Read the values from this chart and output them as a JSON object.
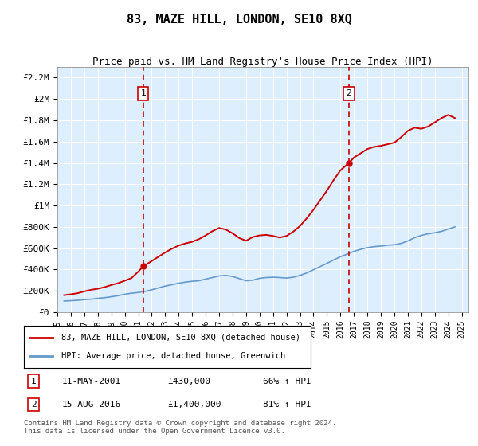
{
  "title": "83, MAZE HILL, LONDON, SE10 8XQ",
  "subtitle": "Price paid vs. HM Land Registry's House Price Index (HPI)",
  "footer": "Contains HM Land Registry data © Crown copyright and database right 2024.\nThis data is licensed under the Open Government Licence v3.0.",
  "legend_line1": "83, MAZE HILL, LONDON, SE10 8XQ (detached house)",
  "legend_line2": "HPI: Average price, detached house, Greenwich",
  "annotation1_label": "1",
  "annotation1_date": "11-MAY-2001",
  "annotation1_price": "£430,000",
  "annotation1_pct": "66% ↑ HPI",
  "annotation2_label": "2",
  "annotation2_date": "15-AUG-2016",
  "annotation2_price": "£1,400,000",
  "annotation2_pct": "81% ↑ HPI",
  "house_color": "#cc0000",
  "hpi_color": "#6699cc",
  "background_color": "#ddeeff",
  "plot_bg": "#ddeeff",
  "ylim": [
    0,
    2300000
  ],
  "yticks": [
    0,
    200000,
    400000,
    600000,
    800000,
    1000000,
    1200000,
    1400000,
    1600000,
    1800000,
    2000000,
    2200000
  ],
  "ytick_labels": [
    "£0",
    "£200K",
    "£400K",
    "£600K",
    "£800K",
    "£1M",
    "£1.2M",
    "£1.4M",
    "£1.6M",
    "£1.8M",
    "£2M",
    "£2.2M"
  ],
  "sale1_year": 2001.37,
  "sale1_price": 430000,
  "sale2_year": 2016.63,
  "sale2_price": 1400000,
  "hpi_years": [
    1995.5,
    1996,
    1996.5,
    1997,
    1997.5,
    1998,
    1998.5,
    1999,
    1999.5,
    2000,
    2000.5,
    2001,
    2001.5,
    2002,
    2002.5,
    2003,
    2003.5,
    2004,
    2004.5,
    2005,
    2005.5,
    2006,
    2006.5,
    2007,
    2007.5,
    2008,
    2008.5,
    2009,
    2009.5,
    2010,
    2010.5,
    2011,
    2011.5,
    2012,
    2012.5,
    2013,
    2013.5,
    2014,
    2014.5,
    2015,
    2015.5,
    2016,
    2016.5,
    2017,
    2017.5,
    2018,
    2018.5,
    2019,
    2019.5,
    2020,
    2020.5,
    2021,
    2021.5,
    2022,
    2022.5,
    2023,
    2023.5,
    2024,
    2024.5
  ],
  "hpi_values": [
    105000,
    108000,
    112000,
    118000,
    122000,
    130000,
    136000,
    145000,
    155000,
    168000,
    178000,
    185000,
    195000,
    210000,
    228000,
    245000,
    258000,
    272000,
    282000,
    290000,
    295000,
    310000,
    325000,
    340000,
    345000,
    335000,
    315000,
    295000,
    300000,
    318000,
    325000,
    328000,
    325000,
    320000,
    328000,
    345000,
    368000,
    398000,
    428000,
    458000,
    490000,
    520000,
    545000,
    570000,
    590000,
    605000,
    615000,
    620000,
    628000,
    632000,
    645000,
    668000,
    698000,
    720000,
    735000,
    745000,
    758000,
    780000,
    800000
  ],
  "house_years": [
    1995.5,
    1996,
    1996.5,
    1997,
    1997.5,
    1998,
    1998.5,
    1999,
    1999.5,
    2000,
    2000.5,
    2001,
    2001.37,
    2001.5,
    2002,
    2002.5,
    2003,
    2003.5,
    2004,
    2004.5,
    2005,
    2005.5,
    2006,
    2006.5,
    2007,
    2007.5,
    2008,
    2008.5,
    2009,
    2009.5,
    2010,
    2010.5,
    2011,
    2011.5,
    2012,
    2012.5,
    2013,
    2013.5,
    2014,
    2014.5,
    2015,
    2015.5,
    2016,
    2016.63,
    2016.5,
    2017,
    2017.5,
    2018,
    2018.5,
    2019,
    2019.5,
    2020,
    2020.5,
    2021,
    2021.5,
    2022,
    2022.5,
    2023,
    2023.5,
    2024,
    2024.5
  ],
  "house_values": [
    160000,
    168000,
    178000,
    195000,
    210000,
    220000,
    235000,
    255000,
    272000,
    295000,
    320000,
    380000,
    430000,
    440000,
    480000,
    520000,
    560000,
    595000,
    625000,
    645000,
    660000,
    685000,
    720000,
    760000,
    790000,
    775000,
    740000,
    695000,
    670000,
    705000,
    720000,
    725000,
    715000,
    700000,
    715000,
    755000,
    808000,
    880000,
    960000,
    1050000,
    1140000,
    1240000,
    1330000,
    1400000,
    1380000,
    1450000,
    1490000,
    1530000,
    1550000,
    1560000,
    1575000,
    1590000,
    1640000,
    1700000,
    1730000,
    1720000,
    1740000,
    1780000,
    1820000,
    1850000,
    1820000
  ],
  "xtick_years": [
    1995,
    1996,
    1997,
    1998,
    1999,
    2000,
    2001,
    2002,
    2003,
    2004,
    2005,
    2006,
    2007,
    2008,
    2009,
    2010,
    2011,
    2012,
    2013,
    2014,
    2015,
    2016,
    2017,
    2018,
    2019,
    2020,
    2021,
    2022,
    2023,
    2024,
    2025
  ],
  "xlim": [
    1995,
    2025.5
  ]
}
